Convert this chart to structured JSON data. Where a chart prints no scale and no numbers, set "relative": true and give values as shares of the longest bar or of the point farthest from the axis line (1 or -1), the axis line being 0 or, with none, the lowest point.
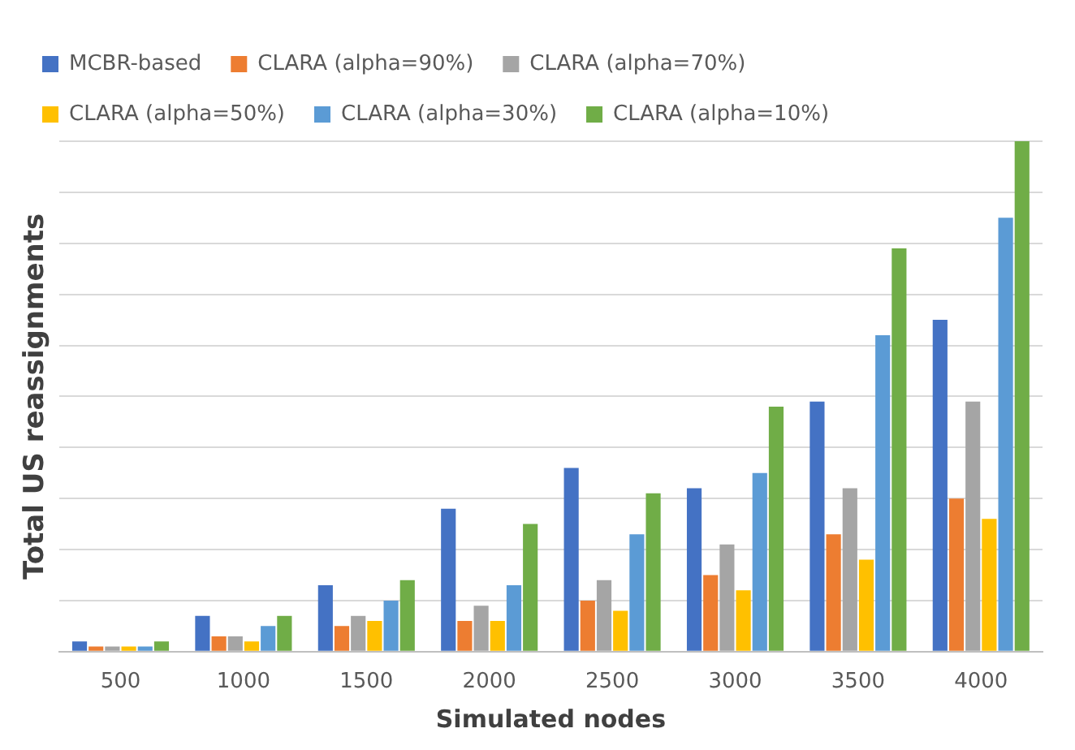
{
  "chart_data": {
    "type": "bar",
    "xlabel": "Simulated nodes",
    "ylabel": "Total US reassignments",
    "relative": true,
    "grid": "y",
    "legend": "top",
    "categories": [
      "500",
      "1000",
      "1500",
      "2000",
      "2500",
      "3000",
      "3500",
      "4000"
    ],
    "series": [
      {
        "name": "MCBR-based",
        "color": "#4472c4",
        "values": [
          0.02,
          0.07,
          0.13,
          0.28,
          0.36,
          0.32,
          0.49,
          0.65
        ]
      },
      {
        "name": "CLARA (alpha=90%)",
        "color": "#ed7d31",
        "values": [
          0.01,
          0.03,
          0.05,
          0.06,
          0.1,
          0.15,
          0.23,
          0.3
        ]
      },
      {
        "name": "CLARA (alpha=70%)",
        "color": "#a5a5a5",
        "values": [
          0.01,
          0.03,
          0.07,
          0.09,
          0.14,
          0.21,
          0.32,
          0.49
        ]
      },
      {
        "name": "CLARA (alpha=50%)",
        "color": "#ffc000",
        "values": [
          0.01,
          0.02,
          0.06,
          0.06,
          0.08,
          0.12,
          0.18,
          0.26
        ]
      },
      {
        "name": "CLARA (alpha=30%)",
        "color": "#5b9bd5",
        "values": [
          0.01,
          0.05,
          0.1,
          0.13,
          0.23,
          0.35,
          0.62,
          0.85
        ]
      },
      {
        "name": "CLARA (alpha=10%)",
        "color": "#70ad47",
        "values": [
          0.02,
          0.07,
          0.14,
          0.25,
          0.31,
          0.48,
          0.79,
          1
        ]
      }
    ]
  }
}
